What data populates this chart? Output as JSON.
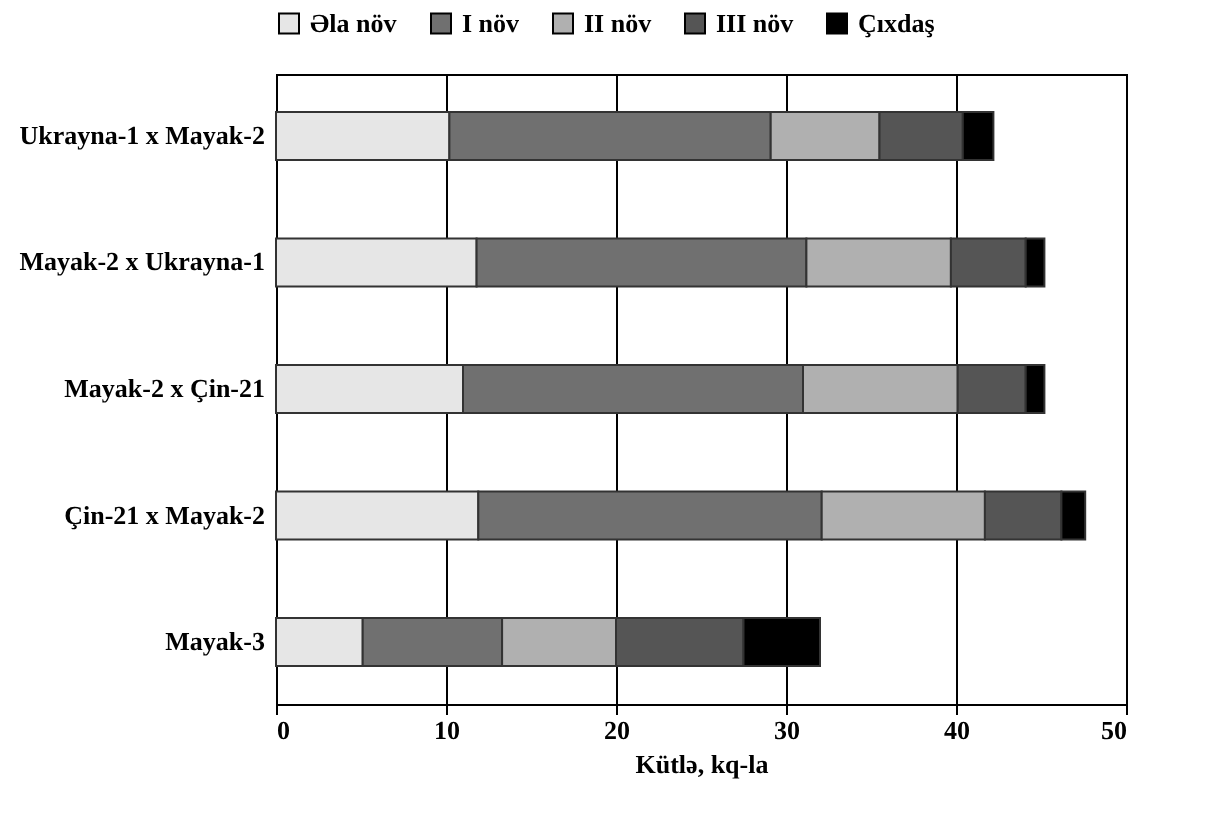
{
  "chart_data": {
    "type": "bar",
    "orientation": "horizontal",
    "stacked": true,
    "xlabel": "Kütlə, kq-la",
    "categories": [
      "Ukrayna-1 x Mayak-2",
      "Mayak-2 x  Ukrayna-1",
      "Mayak-2 x Çin-21",
      "Çin-21  x Mayak-2",
      "Mayak-3"
    ],
    "series": [
      {
        "name": "Əla növ",
        "color": "#e6e6e6",
        "values": [
          10.2,
          11.8,
          11.0,
          11.9,
          5.1
        ]
      },
      {
        "name": "I növ",
        "color": "#707070",
        "values": [
          18.9,
          19.4,
          20.0,
          20.2,
          8.2
        ]
      },
      {
        "name": "II növ",
        "color": "#b0b0b0",
        "values": [
          6.4,
          8.5,
          9.1,
          9.6,
          6.7
        ]
      },
      {
        "name": "III növ",
        "color": "#555555",
        "values": [
          4.9,
          4.4,
          4.0,
          4.5,
          7.5
        ]
      },
      {
        "name": "Çıxdaş",
        "color": "#000000",
        "values": [
          1.8,
          1.1,
          1.1,
          1.4,
          4.5
        ]
      }
    ],
    "xlim": [
      0,
      50
    ],
    "xticks": [
      0,
      10,
      20,
      30,
      40,
      50
    ],
    "grid": "x",
    "legend": "top"
  }
}
